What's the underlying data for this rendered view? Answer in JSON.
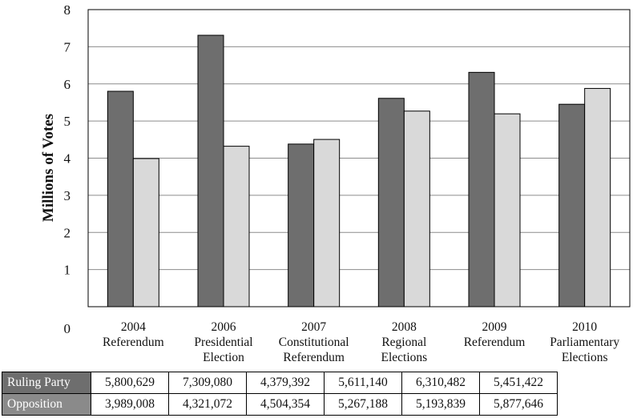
{
  "chart_data": {
    "type": "bar",
    "ylabel": "Millions of Votes",
    "ylim": [
      0,
      8
    ],
    "yticks": [
      "0",
      "1",
      "2",
      "3",
      "4",
      "5",
      "6",
      "7",
      "8"
    ],
    "grid": true,
    "categories": [
      [
        "2004",
        "Referendum"
      ],
      [
        "2006",
        "Presidential",
        "Election"
      ],
      [
        "2007",
        "Constitutional",
        "Referendum"
      ],
      [
        "2008",
        "Regional",
        "Elections"
      ],
      [
        "2009",
        "Referendum"
      ],
      [
        "2010",
        "Parliamentary",
        "Elections"
      ]
    ],
    "series": [
      {
        "name": "Ruling Party",
        "color": "#6e6e6e",
        "values": [
          5.800629,
          7.30908,
          4.379392,
          5.61114,
          6.310482,
          5.451422
        ],
        "labels": [
          "5,800,629",
          "7,309,080",
          "4,379,392",
          "5,611,140",
          "6,310,482",
          "5,451,422"
        ]
      },
      {
        "name": "Opposition",
        "color": "#d9d9d9",
        "values": [
          3.989008,
          4.321072,
          4.504354,
          5.267188,
          5.193839,
          5.877646
        ],
        "labels": [
          "3,989,008",
          "4,321,072",
          "4,504,354",
          "5,267,188",
          "5,193,839",
          "5,877,646"
        ]
      }
    ]
  }
}
